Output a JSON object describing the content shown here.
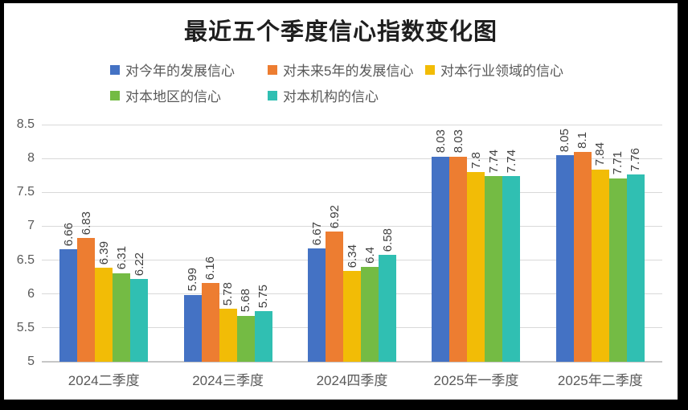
{
  "title": "最近五个季度信心指数变化图",
  "chart_data": {
    "type": "bar",
    "title": "最近五个季度信心指数变化图",
    "categories": [
      "2024二季度",
      "2024三季度",
      "2024四季度",
      "2025年一季度",
      "2025年二季度"
    ],
    "series": [
      {
        "name": "对今年的发展信心",
        "color": "#4472C4",
        "values": [
          6.66,
          5.99,
          6.67,
          8.03,
          8.05
        ]
      },
      {
        "name": "对未来5年的发展信心",
        "color": "#ED7D31",
        "values": [
          6.83,
          6.16,
          6.92,
          8.03,
          8.1
        ]
      },
      {
        "name": "对本行业领域的信心",
        "color": "#F2BC06",
        "values": [
          6.39,
          5.78,
          6.34,
          7.8,
          7.84
        ]
      },
      {
        "name": "对本地区的信心",
        "color": "#74BB44",
        "values": [
          6.31,
          5.68,
          6.4,
          7.74,
          7.71
        ]
      },
      {
        "name": "对本机构的信心",
        "color": "#30BFB2",
        "values": [
          6.22,
          5.75,
          6.58,
          7.74,
          7.76
        ]
      }
    ],
    "ylim": [
      5,
      8.5
    ],
    "yticks": [
      "8.5",
      "8",
      "7.5",
      "7",
      "6.5",
      "6",
      "5.5",
      "5"
    ],
    "grid": true,
    "legend_position": "top",
    "legend_rows": [
      3,
      2
    ],
    "data_labels": true,
    "data_label_orientation": "vertical"
  },
  "colors": {
    "grid": "#D9D9D9",
    "axis_line": "#C6C6C6",
    "tick_label": "#595959",
    "data_label": "#3F3F3F",
    "title_text": "#1F1F1F",
    "background": "#FFFFFF",
    "frame": "#000000"
  }
}
